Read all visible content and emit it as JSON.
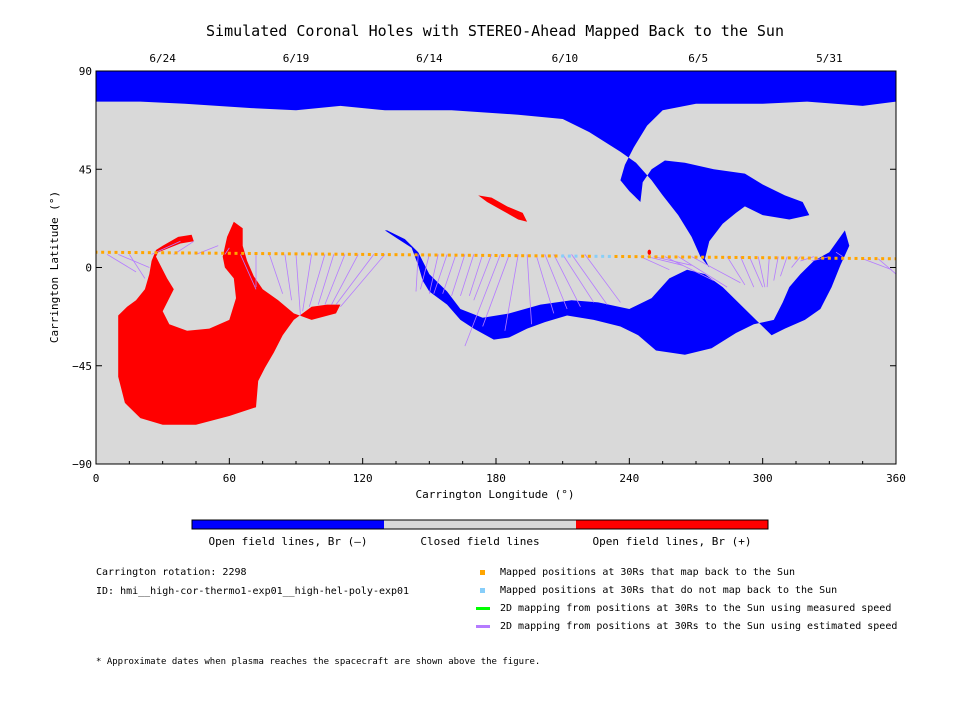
{
  "chart_data": {
    "type": "map",
    "title": "Simulated Coronal Holes with STEREO-Ahead Mapped Back to the Sun",
    "xlabel": "Carrington Longitude (°)",
    "ylabel": "Carrington Latitude (°)",
    "xlim": [
      0,
      360
    ],
    "ylim": [
      -90,
      90
    ],
    "x_ticks": [
      0,
      60,
      120,
      180,
      240,
      300,
      360
    ],
    "y_ticks": [
      -90,
      -45,
      0,
      45,
      90
    ],
    "top_axis_dates": [
      {
        "label": "6/24",
        "lon": 30
      },
      {
        "label": "6/19",
        "lon": 90
      },
      {
        "label": "6/14",
        "lon": 150
      },
      {
        "label": "6/10",
        "lon": 211
      },
      {
        "label": "6/5",
        "lon": 271
      },
      {
        "label": "5/31",
        "lon": 330
      }
    ],
    "colors": {
      "negative": "#0000ff",
      "closed": "#d9d9d9",
      "positive": "#ff0000",
      "mapped_back": "#ffa500",
      "not_mapped": "#87cefa",
      "measured_speed": "#00ff00",
      "estimated_speed": "#b57bff"
    },
    "regions": [
      {
        "polarity": "negative",
        "name": "north polar cap",
        "outline": [
          [
            0,
            90
          ],
          [
            360,
            90
          ],
          [
            360,
            76
          ],
          [
            345,
            74
          ],
          [
            320,
            76
          ],
          [
            300,
            75
          ],
          [
            270,
            75
          ],
          [
            255,
            72
          ],
          [
            248,
            65
          ],
          [
            242,
            55
          ],
          [
            238,
            47
          ],
          [
            236,
            40
          ],
          [
            240,
            35
          ],
          [
            245,
            30
          ],
          [
            246,
            39
          ],
          [
            250,
            45
          ],
          [
            256,
            49
          ],
          [
            265,
            48
          ],
          [
            278,
            45
          ],
          [
            292,
            43
          ],
          [
            300,
            38
          ],
          [
            310,
            33
          ],
          [
            318,
            30
          ],
          [
            321,
            24
          ],
          [
            312,
            22
          ],
          [
            300,
            24
          ],
          [
            292,
            28
          ],
          [
            288,
            25
          ],
          [
            282,
            20
          ],
          [
            276,
            12
          ],
          [
            274,
            4
          ],
          [
            276,
            0
          ],
          [
            272,
            5
          ],
          [
            268,
            14
          ],
          [
            262,
            24
          ],
          [
            255,
            33
          ],
          [
            250,
            40
          ],
          [
            243,
            48
          ],
          [
            236,
            53
          ],
          [
            222,
            62
          ],
          [
            210,
            68
          ],
          [
            190,
            70
          ],
          [
            160,
            72
          ],
          [
            130,
            72
          ],
          [
            110,
            74
          ],
          [
            90,
            72
          ],
          [
            70,
            73
          ],
          [
            40,
            75
          ],
          [
            20,
            76
          ],
          [
            0,
            76
          ]
        ]
      },
      {
        "polarity": "negative",
        "name": "equatorial hole",
        "outline": [
          [
            130,
            17
          ],
          [
            136,
            13
          ],
          [
            142,
            9
          ],
          [
            145,
            1
          ],
          [
            147,
            -6
          ],
          [
            150,
            -11
          ],
          [
            158,
            -17
          ],
          [
            164,
            -24
          ],
          [
            170,
            -28
          ],
          [
            179,
            -33
          ],
          [
            186,
            -32
          ],
          [
            194,
            -28
          ],
          [
            202,
            -25
          ],
          [
            212,
            -22
          ],
          [
            224,
            -24
          ],
          [
            236,
            -27
          ],
          [
            244,
            -31
          ],
          [
            252,
            -38
          ],
          [
            265,
            -40
          ],
          [
            277,
            -37
          ],
          [
            288,
            -30
          ],
          [
            296,
            -26
          ],
          [
            305,
            -24
          ],
          [
            309,
            -16
          ],
          [
            312,
            -9
          ],
          [
            317,
            -3
          ],
          [
            323,
            3
          ],
          [
            330,
            7
          ],
          [
            337,
            17
          ],
          [
            339,
            10
          ],
          [
            335,
            1
          ],
          [
            331,
            -9
          ],
          [
            326,
            -19
          ],
          [
            319,
            -24
          ],
          [
            310,
            -28
          ],
          [
            304,
            -31
          ],
          [
            299,
            -26
          ],
          [
            292,
            -19
          ],
          [
            282,
            -9
          ],
          [
            274,
            -3
          ],
          [
            266,
            -1
          ],
          [
            258,
            -5
          ],
          [
            250,
            -14
          ],
          [
            240,
            -19
          ],
          [
            226,
            -16
          ],
          [
            214,
            -15
          ],
          [
            200,
            -17
          ],
          [
            186,
            -21
          ],
          [
            174,
            -23
          ],
          [
            164,
            -19
          ],
          [
            158,
            -11
          ],
          [
            150,
            -3
          ],
          [
            145,
            7
          ],
          [
            139,
            13
          ],
          [
            131,
            17
          ]
        ]
      },
      {
        "polarity": "closed",
        "name": "closed island",
        "ellipse": {
          "lon": 304,
          "lat": -15,
          "rlon": 3.5,
          "rlat": 5
        }
      },
      {
        "polarity": "positive",
        "name": "small northern hole",
        "outline": [
          [
            172,
            33
          ],
          [
            178,
            32
          ],
          [
            185,
            28
          ],
          [
            192,
            25
          ],
          [
            194,
            21
          ],
          [
            190,
            22
          ],
          [
            183,
            26
          ],
          [
            176,
            30
          ]
        ]
      },
      {
        "polarity": "positive",
        "name": "large southern hole",
        "outline": [
          [
            10,
            -22
          ],
          [
            14,
            -18
          ],
          [
            18,
            -15
          ],
          [
            22,
            -10
          ],
          [
            24,
            -3
          ],
          [
            25,
            3
          ],
          [
            27,
            8
          ],
          [
            30,
            10
          ],
          [
            37,
            14
          ],
          [
            43,
            15
          ],
          [
            44,
            12
          ],
          [
            38,
            11
          ],
          [
            28,
            7
          ],
          [
            27,
            5
          ],
          [
            32,
            -5
          ],
          [
            35,
            -10
          ],
          [
            30,
            -20
          ],
          [
            33,
            -26
          ],
          [
            41,
            -29
          ],
          [
            51,
            -28
          ],
          [
            60,
            -24
          ],
          [
            63,
            -14
          ],
          [
            62,
            -5
          ],
          [
            58,
            0
          ],
          [
            57,
            5
          ],
          [
            59,
            14
          ],
          [
            62,
            21
          ],
          [
            66,
            18
          ],
          [
            66,
            10
          ],
          [
            68,
            3
          ],
          [
            71,
            -4
          ],
          [
            75,
            -10
          ],
          [
            82,
            -15
          ],
          [
            89,
            -21
          ],
          [
            97,
            -24
          ],
          [
            108,
            -21
          ],
          [
            110,
            -17
          ],
          [
            104,
            -17
          ],
          [
            97,
            -18
          ],
          [
            89,
            -24
          ],
          [
            84,
            -31
          ],
          [
            80,
            -39
          ],
          [
            76,
            -46
          ],
          [
            73,
            -52
          ],
          [
            72,
            -64
          ],
          [
            60,
            -68
          ],
          [
            45,
            -72
          ],
          [
            30,
            -72
          ],
          [
            20,
            -69
          ],
          [
            13,
            -62
          ],
          [
            10,
            -50
          ],
          [
            10,
            -38
          ],
          [
            10,
            -28
          ]
        ]
      },
      {
        "polarity": "positive",
        "name": "tiny spot",
        "ellipse": {
          "lon": 249,
          "lat": 7,
          "rlon": 0.8,
          "rlat": 1.2
        }
      }
    ],
    "mapped_points": {
      "lon_start": 0,
      "lon_end": 360,
      "lon_step": 3,
      "lat_start": 7,
      "lat_end": 4,
      "not_mapped_lons": [
        210,
        213,
        216,
        225,
        228,
        231
      ]
    },
    "mapping_lines": {
      "speed_type": "estimated",
      "segments": [
        [
          0,
          6,
          0,
          3
        ],
        [
          5,
          6,
          18,
          -2
        ],
        [
          10,
          6,
          24,
          0
        ],
        [
          15,
          6,
          22,
          -5
        ],
        [
          25,
          6,
          38,
          12
        ],
        [
          35,
          6,
          44,
          12
        ],
        [
          45,
          6,
          55,
          10
        ],
        [
          58,
          6,
          60,
          9
        ],
        [
          65,
          6,
          72,
          -10
        ],
        [
          72,
          6,
          72,
          -9
        ],
        [
          78,
          6,
          84,
          -12
        ],
        [
          85,
          6,
          88,
          -15
        ],
        [
          90,
          6,
          92,
          -22
        ],
        [
          97,
          6,
          93,
          -20
        ],
        [
          103,
          6,
          96,
          -18
        ],
        [
          107,
          6,
          100,
          -17
        ],
        [
          112,
          6,
          103,
          -17
        ],
        [
          118,
          6,
          106,
          -17
        ],
        [
          125,
          6,
          108,
          -17
        ],
        [
          130,
          6,
          110,
          -18
        ],
        [
          145,
          6,
          144,
          -11
        ],
        [
          150,
          6,
          146,
          -10
        ],
        [
          154,
          6,
          150,
          -12
        ],
        [
          158,
          6,
          152,
          -12
        ],
        [
          162,
          6,
          156,
          -12
        ],
        [
          166,
          6,
          160,
          -13
        ],
        [
          170,
          6,
          164,
          -13
        ],
        [
          174,
          6,
          168,
          -13
        ],
        [
          178,
          6,
          170,
          -15
        ],
        [
          182,
          6,
          166,
          -36
        ],
        [
          186,
          6,
          174,
          -27
        ],
        [
          190,
          6,
          184,
          -29
        ],
        [
          194,
          6,
          196,
          -26
        ],
        [
          198,
          6,
          206,
          -21
        ],
        [
          202,
          6,
          212,
          -19
        ],
        [
          206,
          6,
          218,
          -18
        ],
        [
          210,
          6,
          224,
          -16
        ],
        [
          214,
          6,
          230,
          -17
        ],
        [
          220,
          6,
          236,
          -16
        ],
        [
          245,
          5,
          258,
          -1
        ],
        [
          248,
          5,
          264,
          1
        ],
        [
          251,
          5,
          268,
          1
        ],
        [
          256,
          5,
          278,
          -6
        ],
        [
          262,
          5,
          284,
          -9
        ],
        [
          268,
          5,
          290,
          -7
        ],
        [
          284,
          5,
          292,
          -8
        ],
        [
          290,
          5,
          296,
          -9
        ],
        [
          294,
          5,
          300,
          -9
        ],
        [
          298,
          5,
          301,
          -9
        ],
        [
          303,
          5,
          302,
          -9
        ],
        [
          307,
          5,
          305,
          -6
        ],
        [
          311,
          5,
          308,
          -4
        ],
        [
          317,
          5,
          313,
          0
        ],
        [
          323,
          5,
          317,
          3
        ],
        [
          330,
          5,
          322,
          3
        ],
        [
          336,
          5,
          333,
          7
        ],
        [
          345,
          4,
          358,
          -1
        ],
        [
          352,
          4,
          360,
          -3
        ]
      ]
    }
  },
  "colorbar": {
    "labels": [
      "Open field lines, Br (–)",
      "Closed field lines",
      "Open field lines, Br (+)"
    ]
  },
  "info": {
    "rotation": "Carrington rotation: 2298",
    "id": "ID: hmi__high-cor-thermo1-exp01__high-hel-poly-exp01"
  },
  "legend": [
    {
      "label": "Mapped positions at 30Rs that map back to the Sun",
      "kind": "square",
      "color": "#ffa500"
    },
    {
      "label": "Mapped positions at 30Rs that do not map back to the Sun",
      "kind": "square",
      "color": "#87cefa"
    },
    {
      "label": "2D mapping from positions at 30Rs to the Sun using measured speed",
      "kind": "line",
      "color": "#00ff00"
    },
    {
      "label": "2D mapping from positions at 30Rs to the Sun using estimated speed",
      "kind": "line",
      "color": "#b57bff"
    }
  ],
  "footnote": "* Approximate dates when plasma reaches the spacecraft are shown above the figure."
}
